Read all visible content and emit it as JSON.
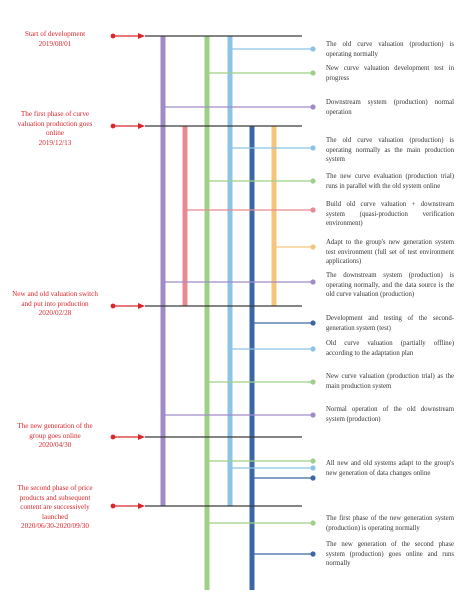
{
  "colors": {
    "milestone_text": "#d9262b",
    "milestone_arrow": "#d9262b",
    "milestone_line": "#3a3a3a",
    "lane_purple": "#a08bc8",
    "lane_green": "#9fd087",
    "lane_lightblue": "#8cc3e6",
    "lane_red": "#e88a90",
    "lane_orange": "#f4c57a",
    "lane_darkblue": "#3b67a8",
    "desc_text": "#333333"
  },
  "milestones": [
    {
      "id": "m1",
      "lines": [
        "Start of development",
        "2019/08/01"
      ]
    },
    {
      "id": "m2",
      "lines": [
        "The first phase of curve",
        "valuation production goes",
        "online",
        "2019/12/13"
      ]
    },
    {
      "id": "m3",
      "lines": [
        "New and old valuation switch",
        "and put into production",
        "2020/02/28"
      ]
    },
    {
      "id": "m4",
      "lines": [
        "The new generation of the",
        "group goes online",
        "2020/04/30"
      ]
    },
    {
      "id": "m5",
      "lines": [
        "The second phase of price",
        "products and subsequent",
        "content are successively",
        "launched",
        "2020/06/30-2020/09/30"
      ]
    }
  ],
  "lanes": [
    {
      "id": "purple",
      "color_key": "lane_purple"
    },
    {
      "id": "green",
      "color_key": "lane_green"
    },
    {
      "id": "lightblue",
      "color_key": "lane_lightblue"
    },
    {
      "id": "red",
      "color_key": "lane_red"
    },
    {
      "id": "orange",
      "color_key": "lane_orange"
    },
    {
      "id": "darkblue",
      "color_key": "lane_darkblue"
    }
  ],
  "events": [
    {
      "id": "e1",
      "lane": "lightblue",
      "text": "The old curve valuation (production) is operating normally"
    },
    {
      "id": "e2",
      "lane": "green",
      "text": "New curve valuation development test in progress"
    },
    {
      "id": "e3",
      "lane": "purple",
      "text": "Downstream system (production) normal operation"
    },
    {
      "id": "e4",
      "lane": "lightblue",
      "text": "The old curve valuation (production) is operating normally as the main production system"
    },
    {
      "id": "e5",
      "lane": "green",
      "text": "The new curve evaluation (production trial) runs in parallel with the old system online"
    },
    {
      "id": "e6",
      "lane": "red",
      "text": "Build old curve valuation + downstream system (quasi-production verification environment)"
    },
    {
      "id": "e7",
      "lane": "orange",
      "text": "Adapt to the group's new generation system test environment (full set of test environment applications)"
    },
    {
      "id": "e8",
      "lane": "purple",
      "text": "The downstream system (production) is operating normally, and the data source is the old curve valuation (production)"
    },
    {
      "id": "e9",
      "lane": "darkblue",
      "text": "Development and testing of the second-generation system (test)"
    },
    {
      "id": "e10",
      "lane": "lightblue",
      "text": "Old curve valuation (partially offline) according to the adaptation plan"
    },
    {
      "id": "e11",
      "lane": "green",
      "text": "New curve valuation (production trial) as the main production system"
    },
    {
      "id": "e12",
      "lane": "purple",
      "text": "Normal operation of the old downstream system (production)"
    },
    {
      "id": "e13",
      "lane": "multi",
      "text": "All new and old systems adapt to the group's new generation of data changes online"
    },
    {
      "id": "e14",
      "lane": "green",
      "text": "The first phase of the new generation system (production) is operating normally"
    },
    {
      "id": "e15",
      "lane": "darkblue",
      "text": "The new generation of the second phase system (production) goes online and runs normally"
    }
  ]
}
